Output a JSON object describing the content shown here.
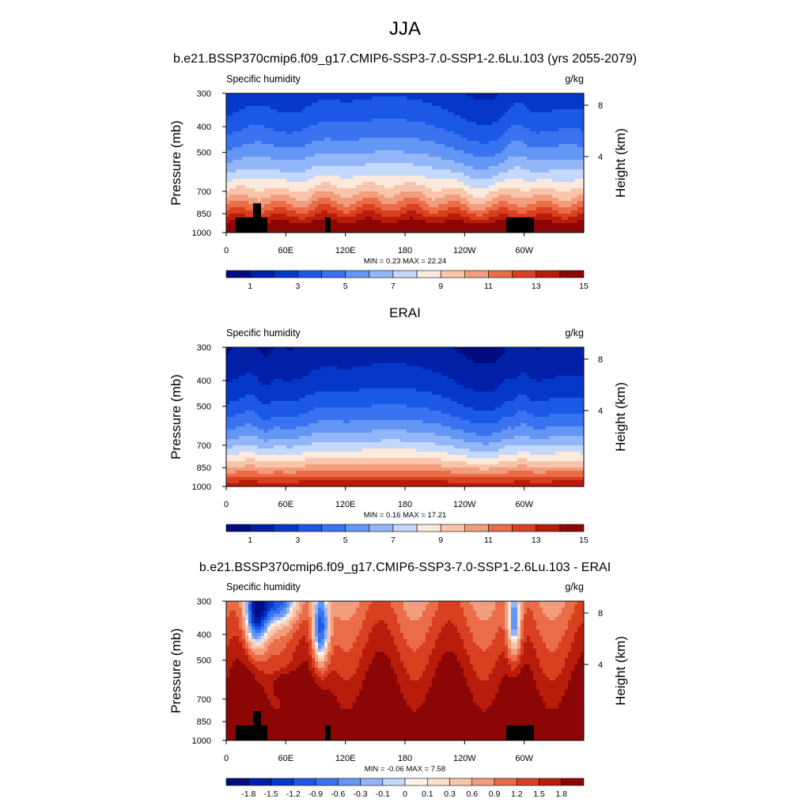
{
  "figure": {
    "title": "JJA",
    "colors": {
      "abs_palette": [
        "#000c80",
        "#0020a8",
        "#0538c9",
        "#1c58e6",
        "#3a73f0",
        "#6395f5",
        "#93b6f8",
        "#c4d8fb",
        "#fbe9dc",
        "#f8c5aa",
        "#f29d7d",
        "#ea6d48",
        "#d9401f",
        "#b81c0b",
        "#8c0606"
      ],
      "diff_palette": [
        "#000c80",
        "#0020a8",
        "#0538c9",
        "#1c58e6",
        "#3a73f0",
        "#6395f5",
        "#93b6f8",
        "#c4d8fb",
        "#fcf3ea",
        "#fbe0cc",
        "#f8c5aa",
        "#f29d7d",
        "#ea6d48",
        "#d9401f",
        "#b81c0b",
        "#8c0606"
      ],
      "topography": "#000000"
    }
  },
  "chart_data": [
    {
      "type": "heatmap",
      "title": "b.e21.BSSP370cmip6.f09_g17.CMIP6-SSP3-7.0-SSP1-2.6Lu.103 (yrs 2055-2079)",
      "left_label": "Specific humidity",
      "right_label": "g/kg",
      "ylabel": "Pressure (mb)",
      "ylabel_right": "Height (km)",
      "xticks": [
        "0",
        "60E",
        "120E",
        "180",
        "120W",
        "60W"
      ],
      "yticks": [
        "300",
        "400",
        "500",
        "700",
        "850",
        "1000"
      ],
      "ylim": [
        1000,
        300
      ],
      "height_ticks": [
        "8",
        "4"
      ],
      "stats": "MIN =   0.23  MAX =  22.24",
      "colorbar_labels": [
        "1",
        "3",
        "5",
        "7",
        "9",
        "11",
        "13",
        "15"
      ],
      "colorbar_levels": [
        0,
        1,
        2,
        3,
        4,
        5,
        6,
        7,
        8,
        9,
        10,
        11,
        12,
        13,
        14,
        15
      ],
      "longitudes_deg": [
        0,
        15,
        30,
        45,
        60,
        75,
        90,
        105,
        120,
        135,
        150,
        165,
        180,
        195,
        210,
        225,
        240,
        255,
        270,
        285,
        300,
        315,
        330,
        345,
        360
      ],
      "surface_q_gkg": [
        15,
        15.5,
        16,
        15,
        14,
        15,
        15.5,
        16,
        15.5,
        15,
        14.5,
        14,
        14,
        14,
        13.5,
        13,
        13,
        13,
        14,
        15,
        15,
        14,
        14,
        14,
        15
      ]
    },
    {
      "type": "heatmap",
      "title": "ERAI",
      "left_label": "Specific humidity",
      "right_label": "g/kg",
      "ylabel": "Pressure (mb)",
      "ylabel_right": "Height (km)",
      "xticks": [
        "0",
        "60E",
        "120E",
        "180",
        "120W",
        "60W"
      ],
      "yticks": [
        "300",
        "400",
        "500",
        "700",
        "850",
        "1000"
      ],
      "ylim": [
        1000,
        300
      ],
      "height_ticks": [
        "8",
        "4"
      ],
      "stats": "MIN =   0.16  MAX =  17.21",
      "colorbar_labels": [
        "1",
        "3",
        "5",
        "7",
        "9",
        "11",
        "13",
        "15"
      ],
      "colorbar_levels": [
        0,
        1,
        2,
        3,
        4,
        5,
        6,
        7,
        8,
        9,
        10,
        11,
        12,
        13,
        14,
        15
      ],
      "longitudes_deg": [
        0,
        15,
        30,
        45,
        60,
        75,
        90,
        105,
        120,
        135,
        150,
        165,
        180,
        195,
        210,
        225,
        240,
        255,
        270,
        285,
        300,
        315,
        330,
        345,
        360
      ],
      "surface_q_gkg": [
        13,
        13.5,
        14,
        9,
        12,
        13,
        14,
        14.5,
        14,
        13.5,
        13,
        12.5,
        12,
        12,
        11.5,
        11,
        11,
        11,
        12,
        13,
        13,
        12,
        12,
        12,
        13
      ]
    },
    {
      "type": "heatmap",
      "title": "b.e21.BSSP370cmip6.f09_g17.CMIP6-SSP3-7.0-SSP1-2.6Lu.103 - ERAI",
      "left_label": "Specific humidity",
      "right_label": "g/kg",
      "ylabel": "Pressure (mb)",
      "ylabel_right": "Height (km)",
      "xticks": [
        "0",
        "60E",
        "120E",
        "180",
        "120W",
        "60W"
      ],
      "yticks": [
        "300",
        "400",
        "500",
        "700",
        "850",
        "1000"
      ],
      "ylim": [
        1000,
        300
      ],
      "height_ticks": [
        "8",
        "4"
      ],
      "stats": "MIN =  -0.06  MAX =   7.58",
      "colorbar_labels": [
        "-1.8",
        "-1.5",
        "-1.2",
        "-0.9",
        "-0.6",
        "-0.3",
        "-0.1",
        "0",
        "0.1",
        "0.3",
        "0.6",
        "0.9",
        "1.2",
        "1.5",
        "1.8"
      ],
      "colorbar_levels": [
        -1.8,
        -1.5,
        -1.2,
        -0.9,
        -0.6,
        -0.3,
        -0.1,
        0,
        0.1,
        0.3,
        0.6,
        0.9,
        1.2,
        1.5,
        1.8
      ]
    }
  ]
}
